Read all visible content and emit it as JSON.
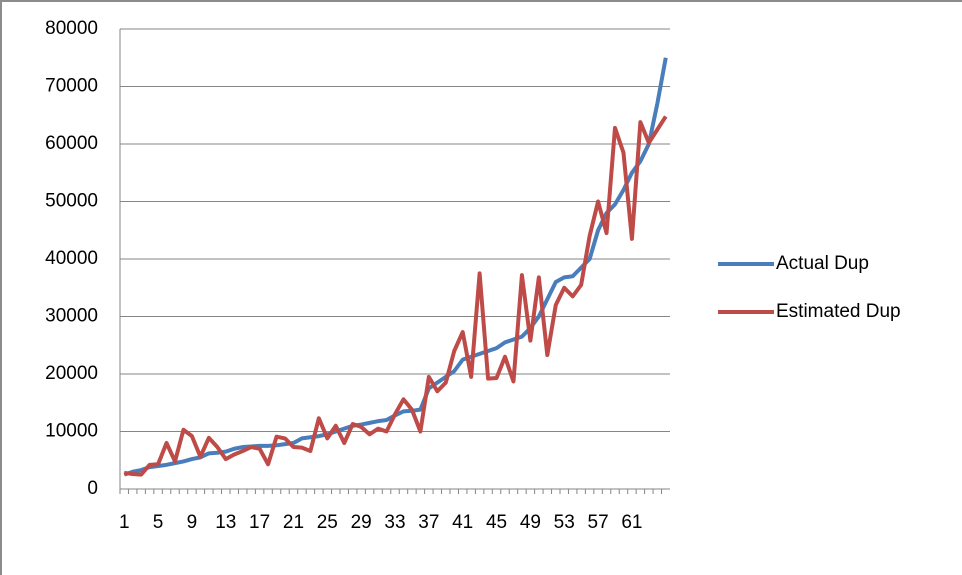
{
  "chart_data": {
    "type": "line",
    "categories": [
      "1",
      null,
      null,
      null,
      "5",
      null,
      null,
      null,
      "9",
      null,
      null,
      null,
      "13",
      null,
      null,
      null,
      "17",
      null,
      null,
      null,
      "21",
      null,
      null,
      null,
      "25",
      null,
      null,
      null,
      "29",
      null,
      null,
      null,
      "33",
      null,
      null,
      null,
      "37",
      null,
      null,
      null,
      "41",
      null,
      null,
      null,
      "45",
      null,
      null,
      null,
      "49",
      null,
      null,
      null,
      "53",
      null,
      null,
      null,
      "57",
      null,
      null,
      null,
      "61",
      null,
      null,
      null,
      null
    ],
    "series": [
      {
        "name": "Actual Dup",
        "color": "#4a7ebb",
        "values": [
          2500,
          3000,
          3300,
          3800,
          4000,
          4200,
          4500,
          4800,
          5200,
          5500,
          6200,
          6300,
          6500,
          7000,
          7300,
          7400,
          7500,
          7500,
          7600,
          7800,
          8000,
          8800,
          9000,
          9200,
          9500,
          10000,
          10500,
          11000,
          11200,
          11500,
          11800,
          12000,
          12800,
          13500,
          13600,
          13800,
          17500,
          18500,
          19500,
          20500,
          22500,
          23000,
          23500,
          24000,
          24500,
          25500,
          26000,
          26500,
          28000,
          30000,
          33000,
          36000,
          36800,
          37000,
          38500,
          40000,
          45000,
          48000,
          49500,
          52000,
          55000,
          57000,
          60000,
          67000,
          75000
        ]
      },
      {
        "name": "Estimated Dup",
        "color": "#be4b48",
        "values": [
          2800,
          2600,
          2500,
          4200,
          4300,
          8000,
          4800,
          10300,
          9200,
          5600,
          8900,
          7300,
          5200,
          6000,
          6600,
          7300,
          7000,
          4300,
          9100,
          8800,
          7300,
          7200,
          6600,
          12300,
          8800,
          11000,
          8000,
          11300,
          10800,
          9500,
          10500,
          10000,
          13000,
          15600,
          13800,
          10000,
          19500,
          17000,
          18500,
          24000,
          27300,
          19500,
          37500,
          19200,
          19300,
          23000,
          18700,
          37200,
          25800,
          36800,
          23300,
          32000,
          35000,
          33500,
          35500,
          44000,
          50000,
          44500,
          62800,
          58500,
          43500,
          63800,
          60200,
          62500,
          64800
        ]
      }
    ],
    "ylim": [
      0,
      80000
    ],
    "yticks": [
      0,
      10000,
      20000,
      30000,
      40000,
      50000,
      60000,
      70000,
      80000
    ],
    "grid": true,
    "legend": "right"
  }
}
